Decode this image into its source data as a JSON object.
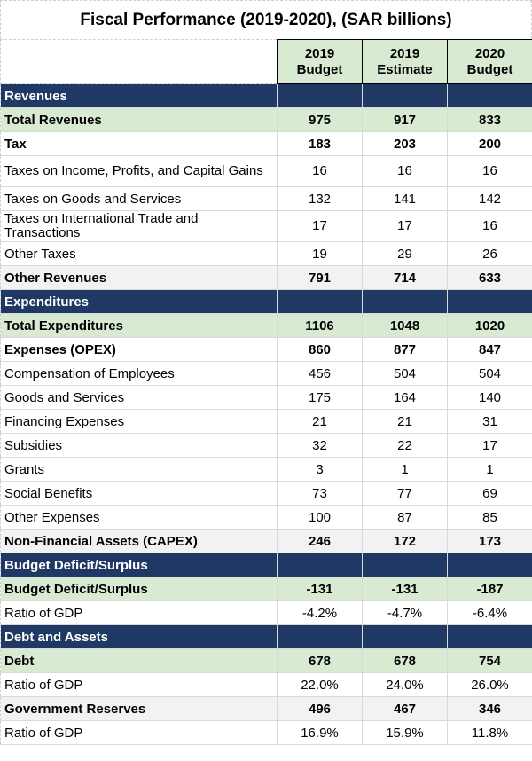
{
  "title": "Fiscal Performance (2019-2020), (SAR billions)",
  "columns": [
    {
      "line1": "2019",
      "line2": "Budget"
    },
    {
      "line1": "2019",
      "line2": "Estimate"
    },
    {
      "line1": "2020",
      "line2": "Budget"
    }
  ],
  "rows": [
    {
      "type": "section",
      "label": "Revenues",
      "values": [
        "",
        "",
        ""
      ]
    },
    {
      "type": "green",
      "label": "Total Revenues",
      "values": [
        "975",
        "917",
        "833"
      ]
    },
    {
      "type": "bold",
      "label": "Tax",
      "values": [
        "183",
        "203",
        "200"
      ]
    },
    {
      "type": "tall",
      "label": "Taxes on Income, Profits, and Capital Gains",
      "values": [
        "16",
        "16",
        "16"
      ]
    },
    {
      "type": "plain",
      "label": "Taxes on Goods and Services",
      "values": [
        "132",
        "141",
        "142"
      ]
    },
    {
      "type": "tall",
      "label": "Taxes on International Trade and Transactions",
      "values": [
        "17",
        "17",
        "16"
      ]
    },
    {
      "type": "plain",
      "label": "Other Taxes",
      "values": [
        "19",
        "29",
        "26"
      ]
    },
    {
      "type": "grey",
      "label": "Other Revenues",
      "values": [
        "791",
        "714",
        "633"
      ]
    },
    {
      "type": "section",
      "label": "Expenditures",
      "values": [
        "",
        "",
        ""
      ]
    },
    {
      "type": "green",
      "label": "Total Expenditures",
      "values": [
        "1106",
        "1048",
        "1020"
      ]
    },
    {
      "type": "bold",
      "label": "Expenses (OPEX)",
      "values": [
        "860",
        "877",
        "847"
      ]
    },
    {
      "type": "plain",
      "label": "Compensation of Employees",
      "values": [
        "456",
        "504",
        "504"
      ]
    },
    {
      "type": "plain",
      "label": "Goods and Services",
      "values": [
        "175",
        "164",
        "140"
      ]
    },
    {
      "type": "plain",
      "label": "Financing Expenses",
      "values": [
        "21",
        "21",
        "31"
      ]
    },
    {
      "type": "plain",
      "label": "Subsidies",
      "values": [
        "32",
        "22",
        "17"
      ]
    },
    {
      "type": "plain",
      "label": "Grants",
      "values": [
        "3",
        "1",
        "1"
      ]
    },
    {
      "type": "plain",
      "label": "Social Benefits",
      "values": [
        "73",
        "77",
        "69"
      ]
    },
    {
      "type": "plain",
      "label": "Other Expenses",
      "values": [
        "100",
        "87",
        "85"
      ]
    },
    {
      "type": "grey",
      "label": "Non-Financial Assets (CAPEX)",
      "values": [
        "246",
        "172",
        "173"
      ]
    },
    {
      "type": "section",
      "label": "Budget Deficit/Surplus",
      "values": [
        "",
        "",
        ""
      ]
    },
    {
      "type": "green",
      "label": "Budget Deficit/Surplus",
      "values": [
        "-131",
        "-131",
        "-187"
      ]
    },
    {
      "type": "plain",
      "label": "Ratio of GDP",
      "values": [
        "-4.2%",
        "-4.7%",
        "-6.4%"
      ]
    },
    {
      "type": "section",
      "label": "Debt and Assets",
      "values": [
        "",
        "",
        ""
      ]
    },
    {
      "type": "green",
      "label": "Debt",
      "values": [
        "678",
        "678",
        "754"
      ]
    },
    {
      "type": "plain",
      "label": "Ratio of GDP",
      "values": [
        "22.0%",
        "24.0%",
        "26.0%"
      ]
    },
    {
      "type": "grey",
      "label": "Government Reserves",
      "values": [
        "496",
        "467",
        "346"
      ]
    },
    {
      "type": "plain",
      "label": "Ratio of GDP",
      "values": [
        "16.9%",
        "15.9%",
        "11.8%"
      ]
    }
  ]
}
